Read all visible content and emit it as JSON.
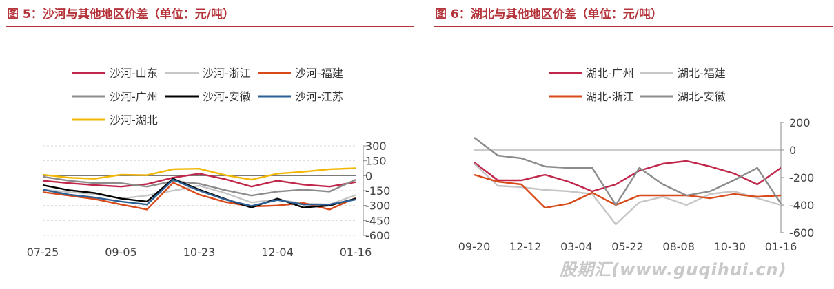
{
  "figures": [
    {
      "title": "图 5：沙河与其他地区价差（单位：元/吨）"
    },
    {
      "title": "图 6：湖北与其他地区价差（单位：元/吨）"
    }
  ],
  "watermark": "股期汇(www.guqihui.cn)",
  "chart_data": [
    {
      "type": "line",
      "title": "图 5：沙河与其他地区价差（单位：元/吨）",
      "y_ticks": [
        300,
        150,
        0,
        -150,
        -300,
        -450,
        -600
      ],
      "ylim": [
        -600,
        300
      ],
      "x_ticks": [
        "07-25",
        "09-05",
        "10-23",
        "12-04",
        "01-16"
      ],
      "grid": "y-dashed",
      "legend": "top",
      "x": [
        "07-25",
        "08-07",
        "08-20",
        "09-05",
        "09-20",
        "10-08",
        "10-23",
        "11-06",
        "11-20",
        "12-04",
        "12-19",
        "01-03",
        "01-16"
      ],
      "series": [
        {
          "name": "沙河-山东",
          "color": "#c0254a",
          "values": [
            -50,
            -75,
            -95,
            -110,
            -85,
            -20,
            20,
            -35,
            -110,
            -50,
            -90,
            -110,
            -65
          ]
        },
        {
          "name": "沙河-浙江",
          "color": "#c6c6c6",
          "values": [
            -140,
            -165,
            -185,
            -230,
            -200,
            -150,
            -100,
            -175,
            -270,
            -240,
            -280,
            -290,
            -195
          ]
        },
        {
          "name": "沙河-福建",
          "color": "#d94a1a",
          "values": [
            -165,
            -200,
            -235,
            -290,
            -340,
            -70,
            -190,
            -265,
            -310,
            -300,
            -275,
            -340,
            -225
          ]
        },
        {
          "name": "沙河-广州",
          "color": "#8c8c8c",
          "values": [
            -10,
            -50,
            -75,
            -75,
            -110,
            -55,
            -80,
            -145,
            -200,
            -160,
            -140,
            -160,
            -40
          ]
        },
        {
          "name": "沙河-安徽",
          "color": "#000000",
          "values": [
            -95,
            -145,
            -175,
            -230,
            -260,
            -30,
            -140,
            -235,
            -320,
            -230,
            -320,
            -300,
            -230
          ]
        },
        {
          "name": "沙河-江苏",
          "color": "#2c5f94",
          "values": [
            -140,
            -190,
            -220,
            -260,
            -290,
            -40,
            -150,
            -240,
            -305,
            -245,
            -290,
            -290,
            -240
          ]
        },
        {
          "name": "沙河-湖北",
          "color": "#f2b705",
          "values": [
            10,
            -20,
            -30,
            10,
            5,
            65,
            70,
            5,
            -40,
            20,
            40,
            65,
            75
          ]
        }
      ]
    },
    {
      "type": "line",
      "title": "图 6：湖北与其他地区价差（单位：元/吨）",
      "y_ticks": [
        200,
        0,
        -200,
        -400,
        -600
      ],
      "ylim": [
        -600,
        200
      ],
      "x_ticks": [
        "09-20",
        "12-12",
        "03-04",
        "05-22",
        "08-08",
        "10-30",
        "01-16"
      ],
      "grid": "none",
      "legend": "top",
      "x": [
        "08-20",
        "09-20",
        "10-30",
        "12-12",
        "01-20",
        "03-04",
        "04-10",
        "05-22",
        "06-30",
        "08-08",
        "09-20",
        "10-30",
        "12-05",
        "01-16"
      ],
      "series": [
        {
          "name": "湖北-广州",
          "color": "#c0254a",
          "values": [
            -90,
            -220,
            -220,
            -180,
            -230,
            -300,
            -250,
            -150,
            -100,
            -80,
            -120,
            -170,
            -250,
            -130
          ]
        },
        {
          "name": "湖北-福建",
          "color": "#c6c6c6",
          "values": [
            -100,
            -260,
            -270,
            -290,
            -300,
            -320,
            -540,
            -380,
            -340,
            -400,
            -320,
            -300,
            -350,
            -400
          ]
        },
        {
          "name": "湖北-浙江",
          "color": "#d94a1a",
          "values": [
            -180,
            -230,
            -250,
            -420,
            -390,
            -310,
            -400,
            -330,
            -330,
            -330,
            -350,
            -320,
            -340,
            -330
          ]
        },
        {
          "name": "湖北-安徽",
          "color": "#8c8c8c",
          "values": [
            90,
            -40,
            -60,
            -120,
            -130,
            -130,
            -400,
            -130,
            -250,
            -330,
            -300,
            -220,
            -130,
            -390
          ]
        }
      ]
    }
  ]
}
